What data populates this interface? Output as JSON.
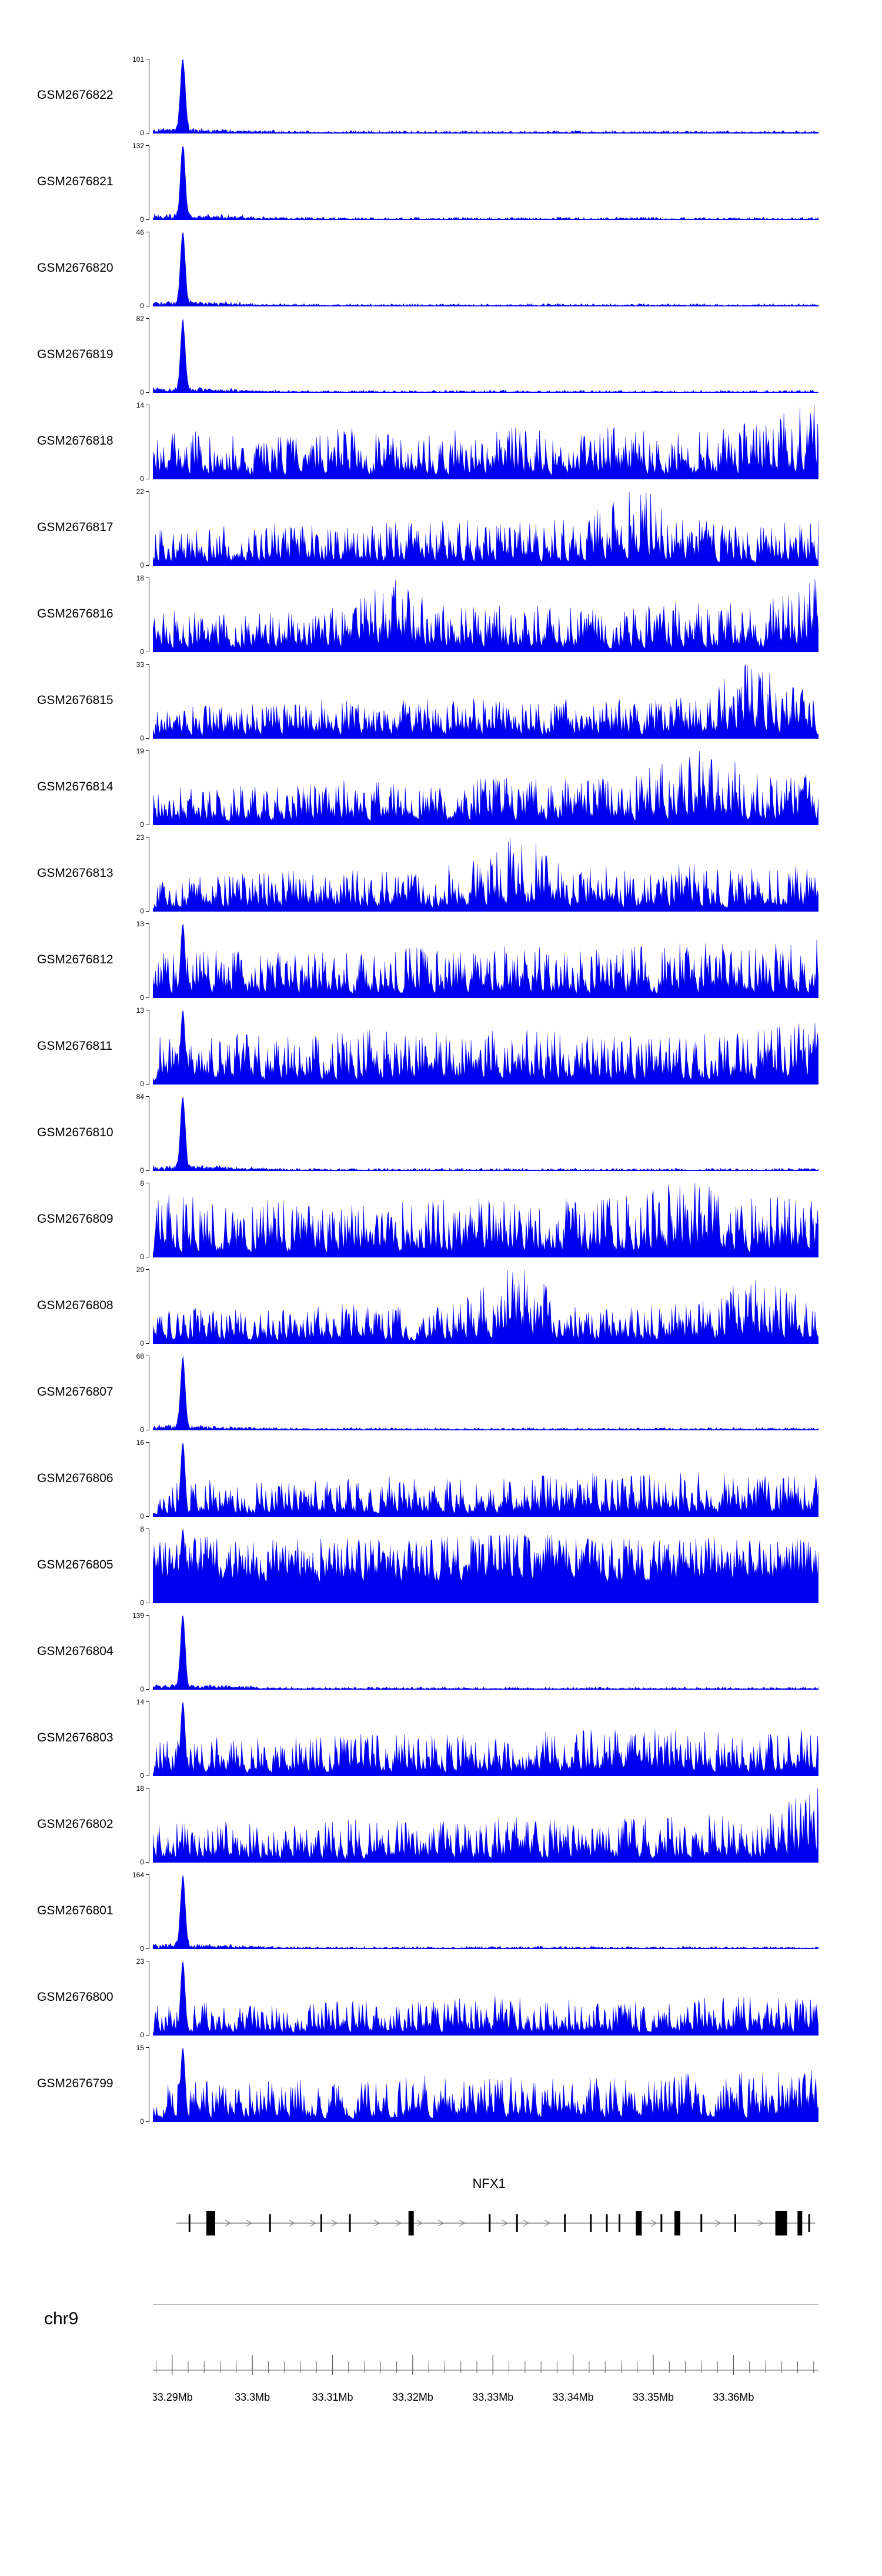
{
  "colors": {
    "signal": "#0000f0",
    "axis": "#000000",
    "text": "#000000",
    "gene_line": "#808080",
    "exon": "#000000",
    "ruler": "#5f5f5f",
    "separator": "#b0b0b0"
  },
  "chromosome": {
    "label": "chr9"
  },
  "chart_data": {
    "type": "area",
    "subtype": "genome-coverage-tracks",
    "title": "",
    "x_axis": {
      "chromosome": "chr9",
      "unit": "Mb",
      "range_mb": [
        33.2876,
        33.3706
      ],
      "minor_tick_step_mb": 0.002,
      "major_ticks": [
        {
          "pos_mb": 33.29,
          "label": "33.29Mb"
        },
        {
          "pos_mb": 33.3,
          "label": "33.3Mb"
        },
        {
          "pos_mb": 33.31,
          "label": "33.31Mb"
        },
        {
          "pos_mb": 33.32,
          "label": "33.32Mb"
        },
        {
          "pos_mb": 33.33,
          "label": "33.33Mb"
        },
        {
          "pos_mb": 33.34,
          "label": "33.34Mb"
        },
        {
          "pos_mb": 33.35,
          "label": "33.35Mb"
        },
        {
          "pos_mb": 33.36,
          "label": "33.36Mb"
        }
      ]
    },
    "series": [
      {
        "label": "GSM2676822",
        "ymax": 101,
        "ymin": 0,
        "pattern": "peak",
        "seed": 11
      },
      {
        "label": "GSM2676821",
        "ymax": 132,
        "ymin": 0,
        "pattern": "peak",
        "seed": 12
      },
      {
        "label": "GSM2676820",
        "ymax": 46,
        "ymin": 0,
        "pattern": "peak",
        "seed": 13
      },
      {
        "label": "GSM2676819",
        "ymax": 82,
        "ymin": 0,
        "pattern": "peak",
        "seed": 14
      },
      {
        "label": "GSM2676818",
        "ymax": 14,
        "ymin": 0,
        "pattern": "dense",
        "seed": 15,
        "envelope": [
          0.55,
          0.6,
          0.5,
          0.65,
          0.55,
          0.6,
          0.65,
          0.6,
          0.65,
          0.6,
          0.7,
          1.0
        ]
      },
      {
        "label": "GSM2676817",
        "ymax": 22,
        "ymin": 0,
        "pattern": "dense",
        "seed": 16,
        "envelope": [
          0.45,
          0.5,
          0.55,
          0.5,
          0.55,
          0.6,
          0.55,
          0.6,
          1.0,
          0.6,
          0.55,
          0.6
        ]
      },
      {
        "label": "GSM2676816",
        "ymax": 18,
        "ymin": 0,
        "pattern": "dense",
        "seed": 17,
        "envelope": [
          0.5,
          0.55,
          0.5,
          0.6,
          0.9,
          0.55,
          0.6,
          0.55,
          0.6,
          0.65,
          0.6,
          1.0
        ]
      },
      {
        "label": "GSM2676815",
        "ymax": 33,
        "ymin": 0,
        "pattern": "dense",
        "seed": 18,
        "envelope": [
          0.35,
          0.4,
          0.45,
          0.5,
          0.45,
          0.5,
          0.45,
          0.5,
          0.45,
          0.5,
          1.0,
          0.45
        ]
      },
      {
        "label": "GSM2676814",
        "ymax": 19,
        "ymin": 0,
        "pattern": "dense",
        "seed": 19,
        "envelope": [
          0.45,
          0.5,
          0.45,
          0.55,
          0.5,
          0.55,
          0.6,
          0.55,
          0.6,
          1.0,
          0.6,
          0.65
        ]
      },
      {
        "label": "GSM2676813",
        "ymax": 23,
        "ymin": 0,
        "pattern": "dense",
        "seed": 20,
        "envelope": [
          0.4,
          0.45,
          0.5,
          0.55,
          0.5,
          0.6,
          1.0,
          0.6,
          0.55,
          0.6,
          0.55,
          0.6
        ]
      },
      {
        "label": "GSM2676812",
        "ymax": 13,
        "ymin": 0,
        "pattern": "peak-dense",
        "seed": 21,
        "envelope": [
          0.6,
          0.65,
          0.6,
          0.65,
          0.7,
          0.65,
          0.7,
          0.65,
          0.7,
          0.75,
          0.7,
          0.8
        ]
      },
      {
        "label": "GSM2676811",
        "ymax": 13,
        "ymin": 0,
        "pattern": "peak-dense",
        "seed": 22,
        "envelope": [
          0.65,
          0.7,
          0.65,
          0.7,
          0.75,
          0.7,
          0.75,
          0.7,
          0.75,
          0.7,
          0.75,
          0.9
        ]
      },
      {
        "label": "GSM2676810",
        "ymax": 84,
        "ymin": 0,
        "pattern": "peak",
        "seed": 23
      },
      {
        "label": "GSM2676809",
        "ymax": 8,
        "ymin": 0,
        "pattern": "dense",
        "seed": 24,
        "envelope": [
          0.9,
          0.75,
          0.7,
          0.65,
          0.7,
          0.75,
          0.7,
          0.75,
          0.8,
          1.0,
          0.75,
          0.8
        ]
      },
      {
        "label": "GSM2676808",
        "ymax": 29,
        "ymin": 0,
        "pattern": "dense",
        "seed": 25,
        "envelope": [
          0.4,
          0.45,
          0.4,
          0.5,
          0.45,
          0.5,
          1.0,
          0.5,
          0.45,
          0.5,
          0.9,
          0.55
        ]
      },
      {
        "label": "GSM2676807",
        "ymax": 68,
        "ymin": 0,
        "pattern": "peak",
        "seed": 26
      },
      {
        "label": "GSM2676806",
        "ymax": 16,
        "ymin": 0,
        "pattern": "peak-dense",
        "seed": 27,
        "envelope": [
          0.45,
          0.5,
          0.45,
          0.5,
          0.55,
          0.5,
          0.55,
          0.6,
          0.55,
          0.6,
          0.55,
          0.6
        ]
      },
      {
        "label": "GSM2676805",
        "ymax": 8,
        "ymin": 0,
        "pattern": "peak-dense",
        "seed": 28,
        "base": 0.3,
        "pow": 1.6,
        "spike": 0.1,
        "envelope": [
          0.85,
          0.9,
          0.85,
          0.9,
          0.85,
          0.9,
          0.95,
          0.9,
          0.85,
          0.9,
          0.85,
          0.9
        ]
      },
      {
        "label": "GSM2676804",
        "ymax": 139,
        "ymin": 0,
        "pattern": "peak",
        "seed": 29
      },
      {
        "label": "GSM2676803",
        "ymax": 14,
        "ymin": 0,
        "pattern": "peak-dense",
        "seed": 30,
        "envelope": [
          0.5,
          0.55,
          0.5,
          0.55,
          0.6,
          0.55,
          0.6,
          0.65,
          0.6,
          0.65,
          0.6,
          0.65
        ]
      },
      {
        "label": "GSM2676802",
        "ymax": 18,
        "ymin": 0,
        "pattern": "dense",
        "seed": 31,
        "envelope": [
          0.5,
          0.55,
          0.5,
          0.55,
          0.6,
          0.55,
          0.6,
          0.55,
          0.6,
          0.65,
          0.6,
          1.0
        ]
      },
      {
        "label": "GSM2676801",
        "ymax": 164,
        "ymin": 0,
        "pattern": "peak",
        "seed": 32
      },
      {
        "label": "GSM2676800",
        "ymax": 23,
        "ymin": 0,
        "pattern": "peak-dense",
        "seed": 33,
        "envelope": [
          0.4,
          0.45,
          0.4,
          0.5,
          0.45,
          0.5,
          0.55,
          0.5,
          0.45,
          0.5,
          0.55,
          0.5
        ]
      },
      {
        "label": "GSM2676799",
        "ymax": 15,
        "ymin": 0,
        "pattern": "peak-dense",
        "seed": 34,
        "envelope": [
          0.5,
          0.55,
          0.6,
          0.55,
          0.6,
          0.65,
          0.6,
          0.65,
          0.6,
          0.7,
          0.65,
          0.7
        ]
      }
    ],
    "gene_track": {
      "name": "NFX1",
      "label_x": 0.505,
      "strand": "right",
      "line_start": 0.035,
      "line_end": 0.995,
      "arrow_spacing": 0.032,
      "exons": [
        {
          "x": 0.055,
          "w": 3,
          "h": 30
        },
        {
          "x": 0.087,
          "w": 15,
          "h": 42
        },
        {
          "x": 0.176,
          "w": 3,
          "h": 30
        },
        {
          "x": 0.253,
          "w": 3,
          "h": 30
        },
        {
          "x": 0.296,
          "w": 3,
          "h": 30
        },
        {
          "x": 0.388,
          "w": 9,
          "h": 42
        },
        {
          "x": 0.506,
          "w": 3,
          "h": 30
        },
        {
          "x": 0.547,
          "w": 3,
          "h": 30
        },
        {
          "x": 0.619,
          "w": 3,
          "h": 30
        },
        {
          "x": 0.658,
          "w": 3,
          "h": 30
        },
        {
          "x": 0.682,
          "w": 3,
          "h": 30
        },
        {
          "x": 0.701,
          "w": 3,
          "h": 30
        },
        {
          "x": 0.73,
          "w": 10,
          "h": 42
        },
        {
          "x": 0.764,
          "w": 3,
          "h": 30
        },
        {
          "x": 0.788,
          "w": 10,
          "h": 42
        },
        {
          "x": 0.824,
          "w": 3,
          "h": 30
        },
        {
          "x": 0.875,
          "w": 3,
          "h": 30
        },
        {
          "x": 0.944,
          "w": 20,
          "h": 42
        },
        {
          "x": 0.972,
          "w": 8,
          "h": 42
        },
        {
          "x": 0.986,
          "w": 3,
          "h": 30
        }
      ]
    }
  }
}
